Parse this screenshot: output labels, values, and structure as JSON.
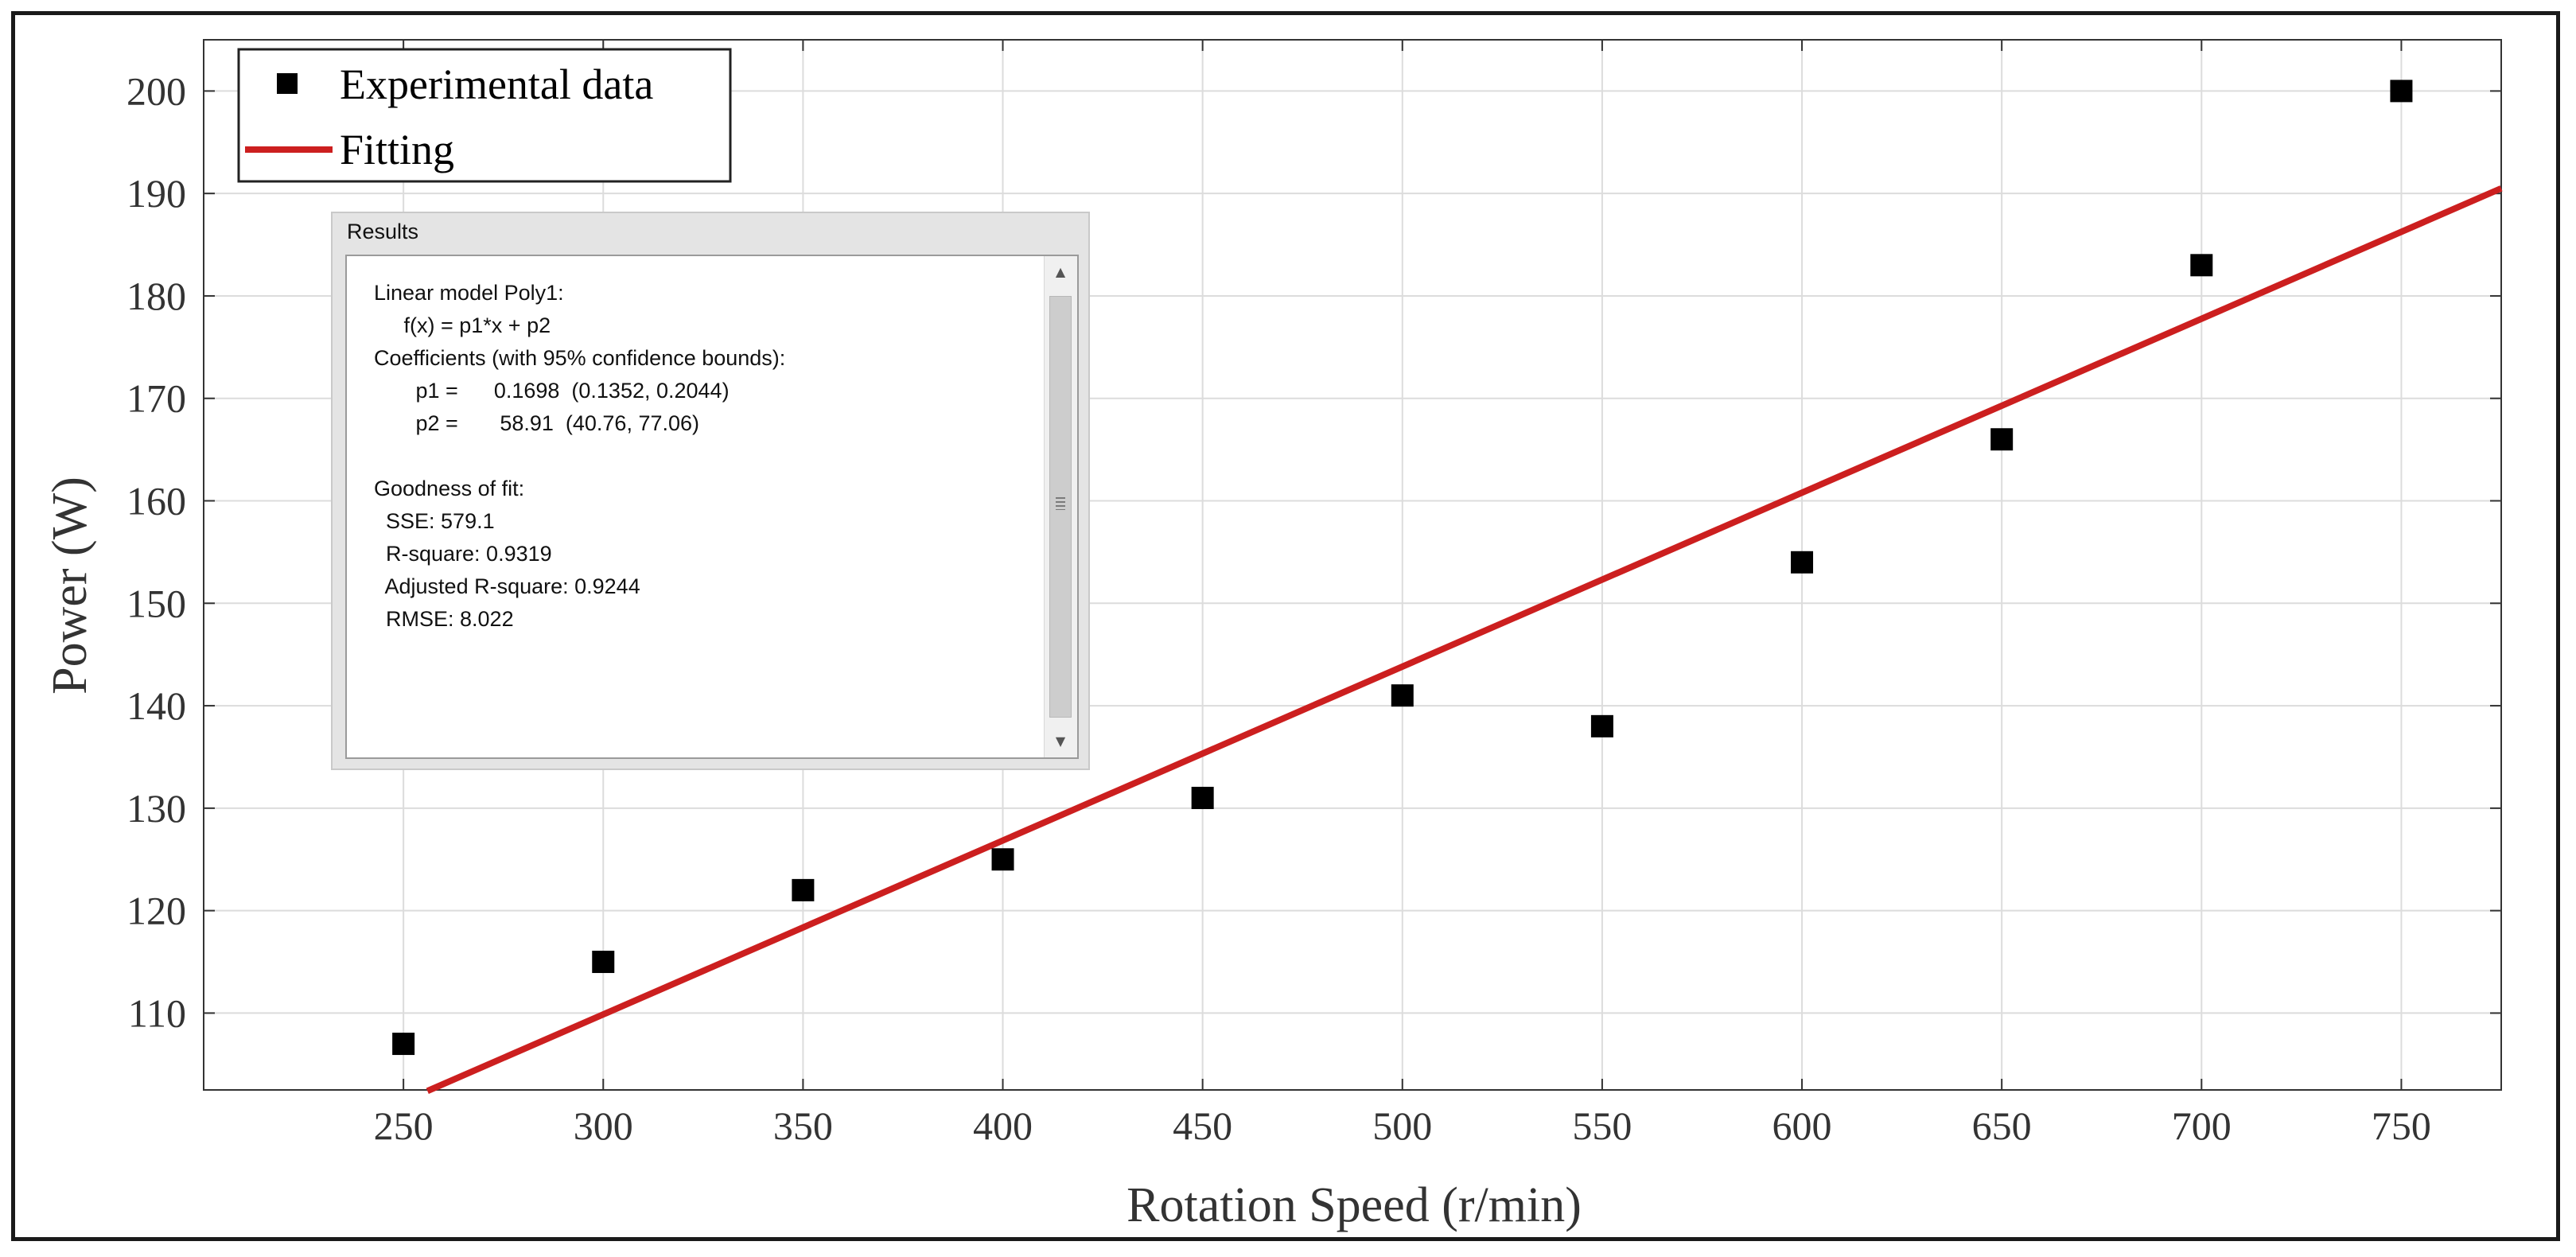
{
  "chart_data": {
    "type": "scatter",
    "xlabel": "Rotation Speed (r/min)",
    "ylabel": "Power (W)",
    "xlim": [
      200,
      775
    ],
    "ylim": [
      102.5,
      205
    ],
    "xticks": [
      250,
      300,
      350,
      400,
      450,
      500,
      550,
      600,
      650,
      700,
      750
    ],
    "yticks": [
      110,
      120,
      130,
      140,
      150,
      160,
      170,
      180,
      190,
      200
    ],
    "grid": true,
    "legend_position": "top-left",
    "series": [
      {
        "name": "Experimental data",
        "kind": "scatter",
        "marker": "square",
        "color": "#000000",
        "x": [
          250,
          300,
          350,
          400,
          450,
          500,
          550,
          600,
          650,
          700,
          750
        ],
        "y": [
          107,
          115,
          122,
          125,
          131,
          141,
          138,
          154,
          166,
          183,
          200
        ]
      },
      {
        "name": "Fitting",
        "kind": "line",
        "color": "#cc1f1f",
        "x": [
          256,
          775
        ],
        "y": [
          102.4,
          190.5
        ]
      }
    ]
  },
  "results": {
    "title": "Results",
    "lines": [
      "Linear model Poly1:",
      "     f(x) = p1*x + p2",
      "Coefficients (with 95% confidence bounds):",
      "       p1 =      0.1698  (0.1352, 0.2044)",
      "       p2 =       58.91  (40.76, 77.06)",
      "",
      "Goodness of fit:",
      "  SSE: 579.1",
      "  R-square: 0.9319",
      "  Adjusted R-square: 0.9244",
      "  RMSE: 8.022"
    ]
  }
}
